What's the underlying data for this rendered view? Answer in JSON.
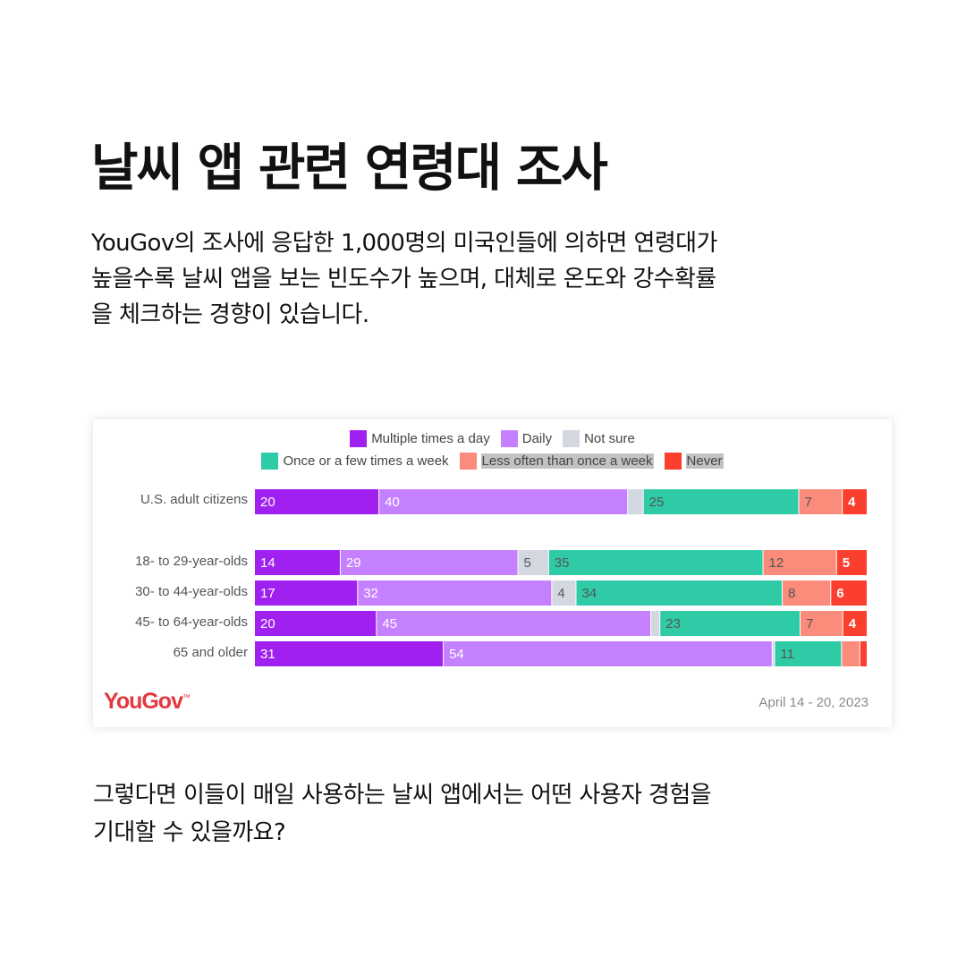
{
  "title": "날씨 앱 관련 연령대 조사",
  "intro": {
    "line1": "YouGov의 조사에 응답한 1,000명의 미국인들에 의하면 연령대가",
    "line2": "높을수록 날씨 앱을 보는 빈도수가 높으며, 대체로 온도와 강수확률",
    "line3": "을 체크하는 경향이 있습니다."
  },
  "outro": {
    "line1": "그렇다면 이들이 매일 사용하는 날씨 앱에서는 어떤 사용자 경험을",
    "line2": "기대할 수 있을까요?"
  },
  "card": {
    "brand": "YouGov",
    "date": "April 14 - 20, 2023"
  },
  "chart_data": {
    "type": "bar",
    "orientation": "horizontal",
    "stacked": true,
    "normalized_percent": true,
    "legend_placement": "top-center",
    "grid": false,
    "categories": [
      "U.S. adult citizens",
      "18- to 29-year-olds",
      "30- to 44-year-olds",
      "45- to 64-year-olds",
      "65 and older"
    ],
    "series": [
      {
        "name": "Multiple times a day",
        "color": "#a020f0",
        "values": [
          20,
          14,
          17,
          20,
          31
        ],
        "labels": [
          "20",
          "14",
          "17",
          "20",
          "31"
        ]
      },
      {
        "name": "Daily",
        "color": "#c580ff",
        "values": [
          40,
          29,
          32,
          45,
          54
        ],
        "labels": [
          "40",
          "29",
          "32",
          "45",
          "54"
        ]
      },
      {
        "name": "Not sure",
        "color": "#d3d7e0",
        "values": [
          2.5,
          5,
          4,
          1.5,
          0.4
        ],
        "labels": [
          "",
          "5",
          "4",
          "",
          ""
        ]
      },
      {
        "name": "Once or a few times a week",
        "color": "#2fcba7",
        "values": [
          25,
          35,
          34,
          23,
          11
        ],
        "labels": [
          "25",
          "35",
          "34",
          "23",
          "11"
        ]
      },
      {
        "name": "Less often than once a week",
        "color": "#fb8b7a",
        "values": [
          7,
          12,
          8,
          7,
          3
        ],
        "labels": [
          "7",
          "12",
          "8",
          "7",
          ""
        ]
      },
      {
        "name": "Never",
        "color": "#fb3f2f",
        "values": [
          4,
          5,
          6,
          4,
          1.2
        ],
        "labels": [
          "4",
          "5",
          "6",
          "4",
          ""
        ]
      }
    ]
  }
}
